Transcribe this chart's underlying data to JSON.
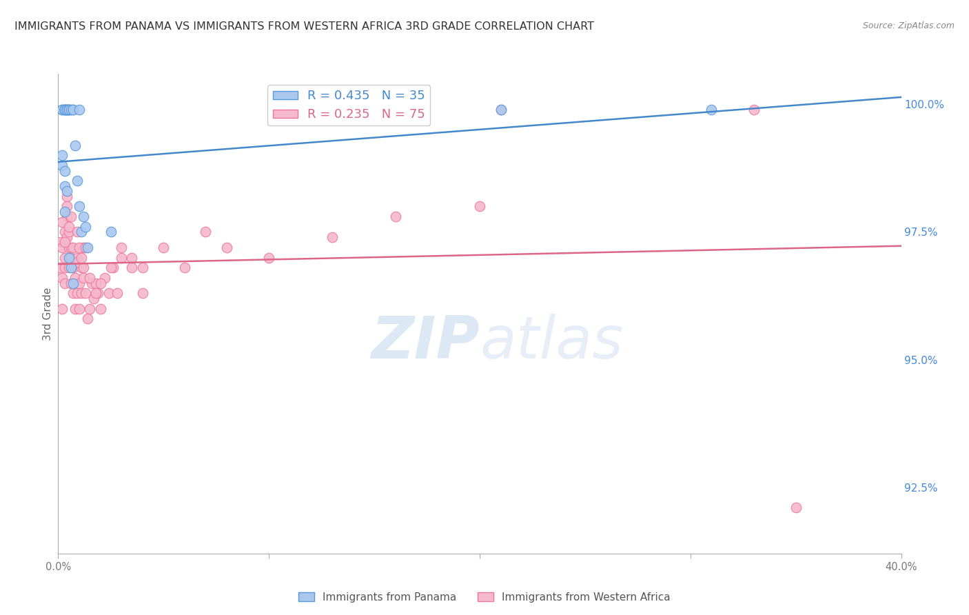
{
  "title": "IMMIGRANTS FROM PANAMA VS IMMIGRANTS FROM WESTERN AFRICA 3RD GRADE CORRELATION CHART",
  "source": "Source: ZipAtlas.com",
  "ylabel": "3rd Grade",
  "xlim": [
    0.0,
    0.4
  ],
  "ylim": [
    0.912,
    1.006
  ],
  "yticks": [
    0.925,
    0.95,
    0.975,
    1.0
  ],
  "ytick_labels": [
    "92.5%",
    "95.0%",
    "97.5%",
    "100.0%"
  ],
  "xticks": [
    0.0,
    0.1,
    0.2,
    0.3,
    0.4
  ],
  "xtick_labels": [
    "0.0%",
    "",
    "",
    "",
    "40.0%"
  ],
  "ytick_color": "#4488dd",
  "blue_R": 0.435,
  "blue_N": 35,
  "pink_R": 0.235,
  "pink_N": 75,
  "blue_fill_color": "#aac8ee",
  "pink_fill_color": "#f5b8cc",
  "blue_edge_color": "#5599dd",
  "pink_edge_color": "#ee7799",
  "blue_line_color": "#4488cc",
  "pink_line_color": "#dd6688",
  "watermark_color": "#dde8f5",
  "background_color": "#ffffff",
  "grid_color": "#cccccc",
  "title_fontsize": 11.5,
  "blue_x": [
    0.002,
    0.002,
    0.003,
    0.003,
    0.003,
    0.003,
    0.004,
    0.004,
    0.004,
    0.005,
    0.005,
    0.005,
    0.006,
    0.007,
    0.007,
    0.008,
    0.009,
    0.01,
    0.01,
    0.011,
    0.012,
    0.013,
    0.014,
    0.002,
    0.002,
    0.003,
    0.003,
    0.025,
    0.003,
    0.004,
    0.005,
    0.006,
    0.007,
    0.21,
    0.31
  ],
  "blue_y": [
    0.999,
    0.999,
    0.999,
    0.999,
    0.999,
    0.999,
    0.999,
    0.999,
    0.999,
    0.999,
    0.999,
    0.999,
    0.999,
    0.999,
    0.999,
    0.992,
    0.985,
    0.98,
    0.999,
    0.975,
    0.978,
    0.976,
    0.972,
    0.988,
    0.99,
    0.984,
    0.987,
    0.975,
    0.979,
    0.983,
    0.97,
    0.968,
    0.965,
    0.999,
    0.999
  ],
  "pink_x": [
    0.001,
    0.001,
    0.002,
    0.002,
    0.002,
    0.003,
    0.003,
    0.003,
    0.003,
    0.004,
    0.004,
    0.004,
    0.005,
    0.005,
    0.005,
    0.006,
    0.006,
    0.006,
    0.007,
    0.007,
    0.008,
    0.008,
    0.009,
    0.009,
    0.01,
    0.01,
    0.011,
    0.011,
    0.012,
    0.012,
    0.013,
    0.014,
    0.015,
    0.016,
    0.017,
    0.018,
    0.019,
    0.02,
    0.022,
    0.024,
    0.026,
    0.028,
    0.03,
    0.035,
    0.04,
    0.002,
    0.003,
    0.004,
    0.005,
    0.006,
    0.007,
    0.008,
    0.009,
    0.01,
    0.011,
    0.012,
    0.013,
    0.015,
    0.018,
    0.02,
    0.025,
    0.03,
    0.035,
    0.04,
    0.05,
    0.06,
    0.07,
    0.08,
    0.1,
    0.13,
    0.16,
    0.2,
    0.21,
    0.33,
    0.35
  ],
  "pink_y": [
    0.973,
    0.968,
    0.972,
    0.966,
    0.96,
    0.97,
    0.965,
    0.975,
    0.968,
    0.982,
    0.978,
    0.974,
    0.972,
    0.968,
    0.975,
    0.97,
    0.965,
    0.972,
    0.968,
    0.963,
    0.966,
    0.96,
    0.963,
    0.97,
    0.965,
    0.96,
    0.968,
    0.963,
    0.966,
    0.972,
    0.963,
    0.958,
    0.96,
    0.965,
    0.962,
    0.965,
    0.963,
    0.96,
    0.966,
    0.963,
    0.968,
    0.963,
    0.97,
    0.968,
    0.963,
    0.977,
    0.973,
    0.98,
    0.976,
    0.978,
    0.972,
    0.969,
    0.975,
    0.972,
    0.97,
    0.968,
    0.972,
    0.966,
    0.963,
    0.965,
    0.968,
    0.972,
    0.97,
    0.968,
    0.972,
    0.968,
    0.975,
    0.972,
    0.97,
    0.974,
    0.978,
    0.98,
    0.999,
    0.999,
    0.921
  ]
}
